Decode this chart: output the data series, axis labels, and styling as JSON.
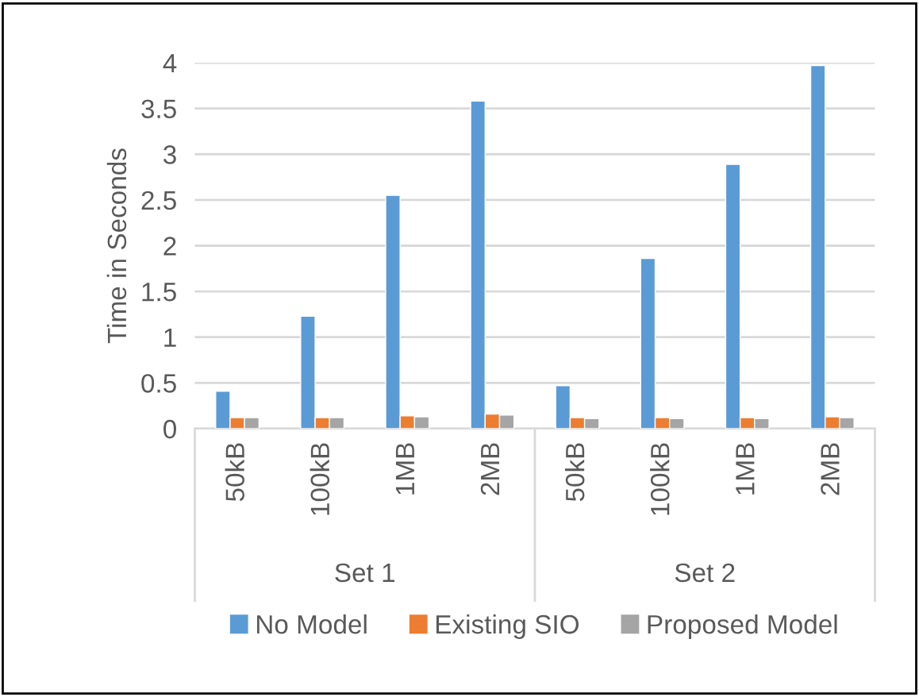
{
  "chart_data": {
    "type": "bar",
    "ylabel": "Time in Seconds",
    "categories": [
      "50kB",
      "100kB",
      "1MB",
      "2MB",
      "50kB",
      "100kB",
      "1MB",
      "2MB"
    ],
    "series": [
      {
        "name": "No Model",
        "color": "#5b9bd5",
        "values": [
          0.41,
          1.23,
          2.55,
          3.58,
          0.47,
          1.86,
          2.89,
          3.97
        ]
      },
      {
        "name": "Existing SIO",
        "color": "#ed7d31",
        "values": [
          0.12,
          0.12,
          0.14,
          0.16,
          0.12,
          0.12,
          0.12,
          0.13
        ]
      },
      {
        "name": "Proposed Model",
        "color": "#a5a5a5",
        "values": [
          0.12,
          0.12,
          0.13,
          0.15,
          0.11,
          0.11,
          0.11,
          0.12
        ]
      }
    ],
    "annotations": [
      "Set 1",
      "Set 2"
    ],
    "ylim": [
      0,
      4
    ],
    "yticks": [
      0,
      0.5,
      1,
      1.5,
      2,
      2.5,
      3,
      3.5,
      4
    ],
    "grid": "y",
    "legend": "bottom"
  }
}
